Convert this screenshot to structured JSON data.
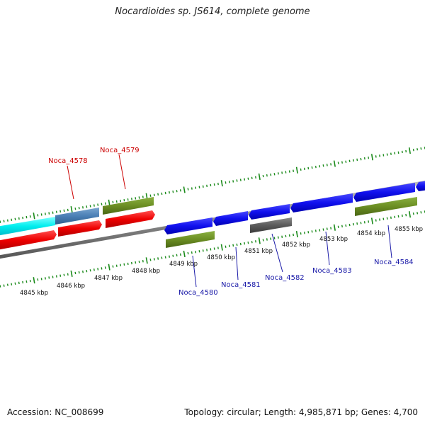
{
  "title": "Nocardioides sp. JS614, complete genome",
  "accession_text": "Accession: NC_008699",
  "stats_text": "Topology: circular; Length: 4,985,871 bp; Genes: 4,700",
  "colors": {
    "backbone": "#8a8a8a",
    "tick": "#1a8a1a",
    "label_red": "#cc0000",
    "label_blue": "#1a1aa8"
  },
  "scale_labels": [
    "4845 kbp",
    "4846 kbp",
    "4847 kbp",
    "4848 kbp",
    "4849 kbp",
    "4850 kbp",
    "4851 kbp",
    "4852 kbp",
    "4853 kbp",
    "4854 kbp",
    "4855 kbp"
  ],
  "gene_labels": [
    {
      "name": "Noca_4578",
      "color": "red"
    },
    {
      "name": "Noca_4579",
      "color": "red"
    },
    {
      "name": "Noca_4580",
      "color": "blue"
    },
    {
      "name": "Noca_4581",
      "color": "blue"
    },
    {
      "name": "Noca_4582",
      "color": "blue"
    },
    {
      "name": "Noca_4583",
      "color": "blue"
    },
    {
      "name": "Noca_4584",
      "color": "blue"
    }
  ]
}
